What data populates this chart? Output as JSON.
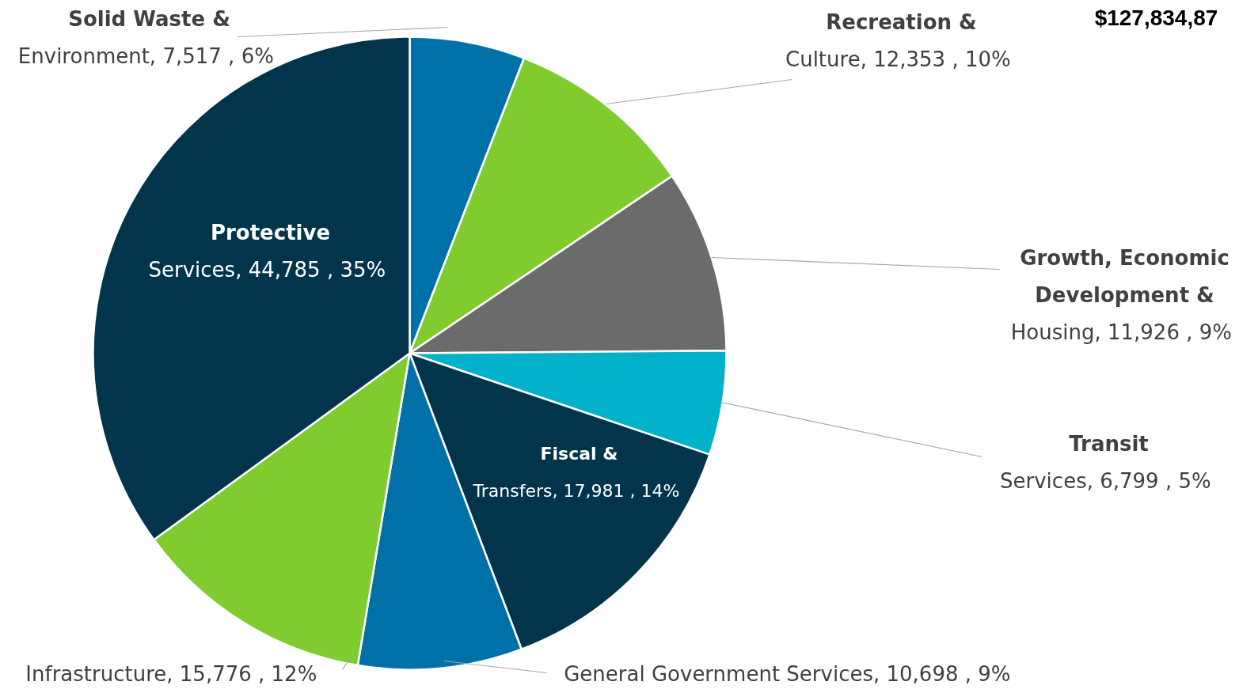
{
  "chart_data": {
    "type": "pie",
    "categories": [
      "Solid Waste & Environment",
      "Recreation & Culture",
      "Growth, Economic Development & Housing",
      "Transit Services",
      "Fiscal & Transfers",
      "General Government Services",
      "Infrastructure",
      "Protective Services"
    ],
    "values": [
      7517,
      12353,
      11926,
      6799,
      17981,
      10698,
      15776,
      44785
    ],
    "value_labels": [
      "7,517 , 6%",
      "12,353 , 10%",
      "11,926 , 9%",
      "6,799 , 5%",
      "17,981 , 14%",
      "10,698 , 9%",
      "15,776 , 12%",
      "44,785 , 35%"
    ],
    "colors": [
      "#0070a8",
      "#80cc2e",
      "#6b6b6b",
      "#00b1c9",
      "#02344b",
      "#0070a8",
      "#80cc2e",
      "#02344b"
    ],
    "annotations": [
      "$127,834,87"
    ]
  }
}
